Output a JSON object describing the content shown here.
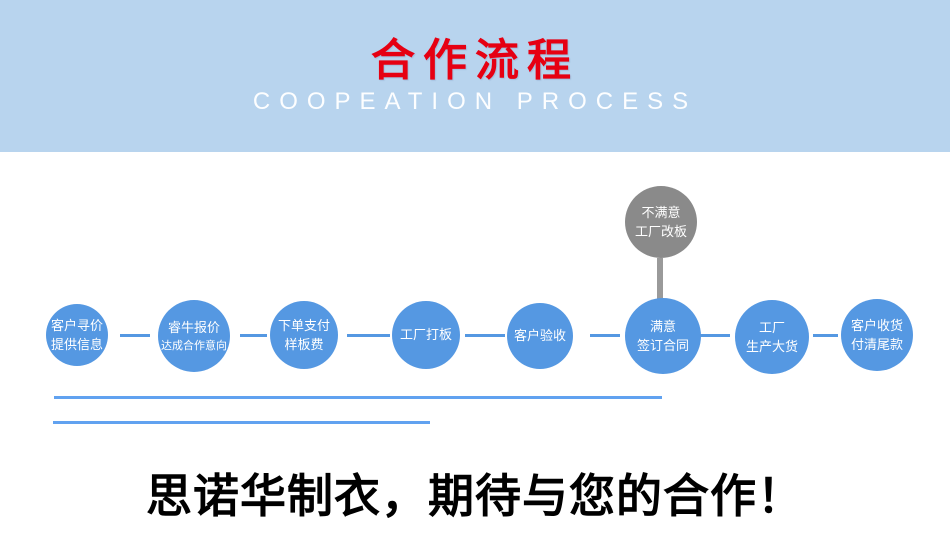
{
  "header": {
    "title": "合作流程",
    "subtitle": "COOPEATION PROCESS",
    "bg_color": "#b8d4ee",
    "title_color": "#e60012",
    "subtitle_color": "#fdfeff"
  },
  "flow": {
    "node_color": "#5598e2",
    "branch_node_color": "#8a8a8a",
    "connector_color": "#5598e2",
    "steps": [
      {
        "lines": [
          "客户寻价",
          "提供信息"
        ]
      },
      {
        "lines": [
          "睿牛报价",
          "达成合作意向"
        ]
      },
      {
        "lines": [
          "下单支付",
          "样板费"
        ]
      },
      {
        "lines": [
          "工厂打板"
        ]
      },
      {
        "lines": [
          "客户验收"
        ]
      },
      {
        "lines": [
          "满意",
          "签订合同"
        ]
      },
      {
        "lines": [
          "工厂",
          "生产大货"
        ]
      },
      {
        "lines": [
          "客户收货",
          "付清尾款"
        ]
      }
    ],
    "branch": {
      "lines": [
        "不满意",
        "工厂改板"
      ]
    }
  },
  "rules": {
    "color": "#61a2f0"
  },
  "footer": {
    "headline": "思诺华制衣，期待与您的合作！"
  }
}
